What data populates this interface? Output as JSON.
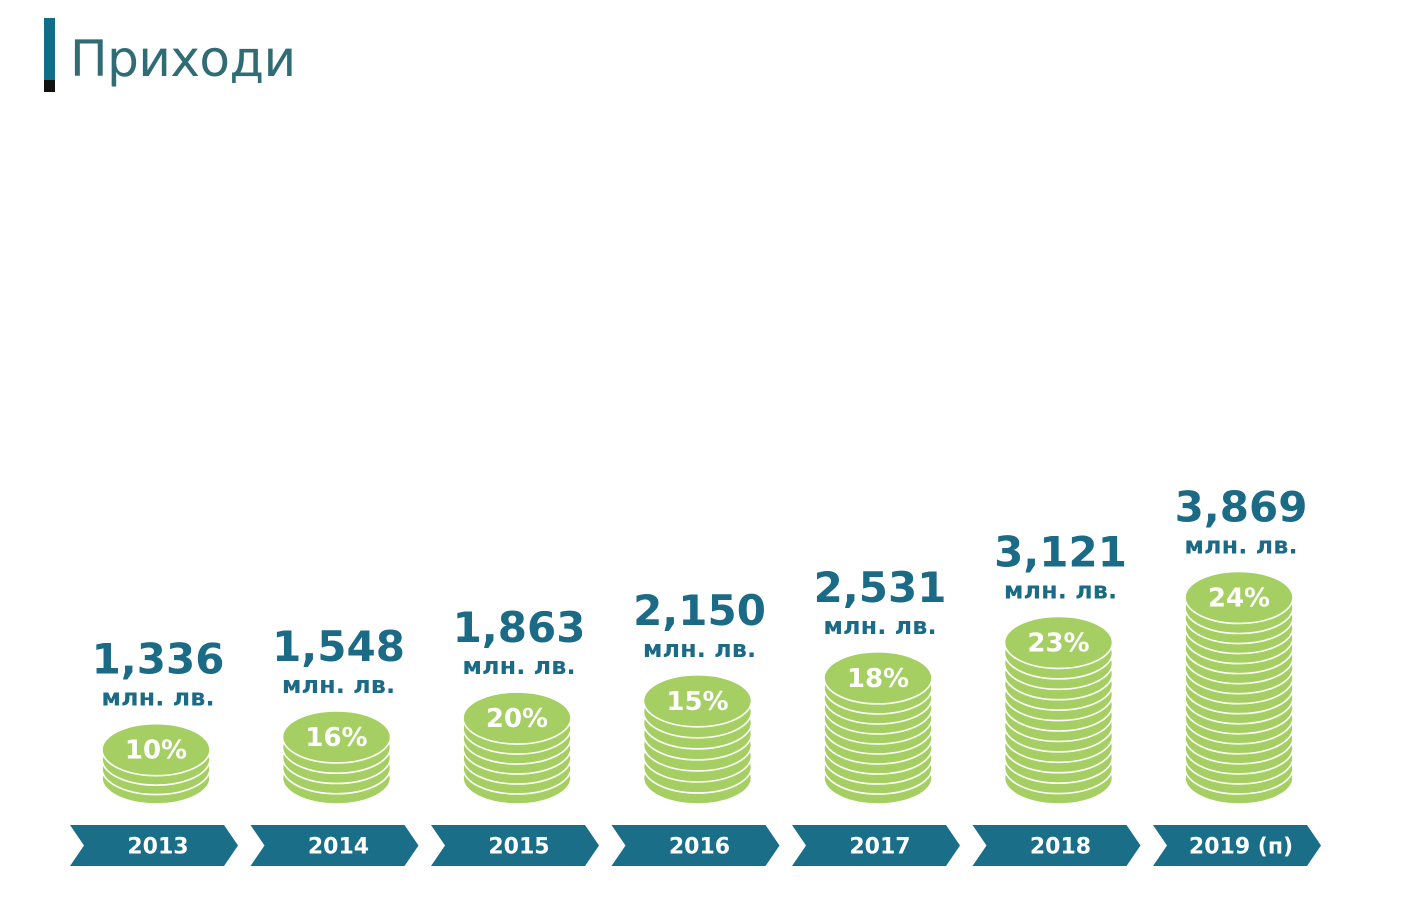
{
  "title": "Приходи",
  "colors": {
    "accent": "#0f6e8a",
    "title_text": "#2f6c74",
    "value_text": "#1b6a86",
    "coin_fill": "#a6cf63",
    "coin_stroke": "#ffffff",
    "arrow_fill": "#1a6e88"
  },
  "chart_data": {
    "type": "bar",
    "categories": [
      "2013",
      "2014",
      "2015",
      "2016",
      "2017",
      "2018",
      "2019 (п)"
    ],
    "values": [
      1336,
      1548,
      1863,
      2150,
      2531,
      3121,
      3869
    ],
    "value_labels": [
      "1,336",
      "1,548",
      "1,863",
      "2,150",
      "2,531",
      "3,121",
      "3,869"
    ],
    "unit_label": "млн. лв.",
    "percent_labels": [
      "10%",
      "16%",
      "20%",
      "15%",
      "18%",
      "23%",
      "24%"
    ],
    "title": "",
    "xlabel": "",
    "ylabel": "",
    "grid": false,
    "legend": "none"
  }
}
